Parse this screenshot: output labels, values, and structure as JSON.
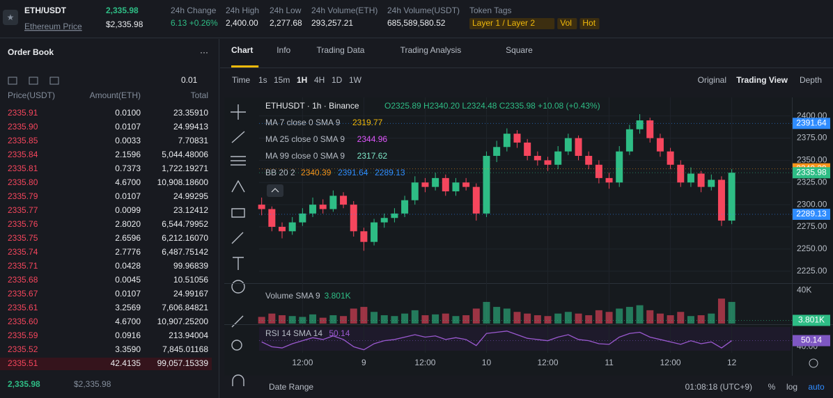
{
  "header": {
    "symbol": "ETH/USDT",
    "name": "Ethereum Price",
    "price": "2,335.98",
    "price_usd": "$2,335.98",
    "stats": [
      {
        "label": "24h Change",
        "value": "6.13 +0.26%"
      },
      {
        "label": "24h High",
        "value": "2,400.00"
      },
      {
        "label": "24h Low",
        "value": "2,277.68"
      },
      {
        "label": "24h Volume(ETH)",
        "value": "293,257.21"
      },
      {
        "label": "24h Volume(USDT)",
        "value": "685,589,580.52"
      }
    ],
    "tags_label": "Token Tags",
    "tags": [
      "Layer 1 / Layer 2",
      "Vol",
      "Hot"
    ]
  },
  "order_book": {
    "title": "Order Book",
    "step": "0.01",
    "columns": [
      "Price(USDT)",
      "Amount(ETH)",
      "Total"
    ],
    "rows": [
      [
        "2335.91",
        "0.0100",
        "23.35910"
      ],
      [
        "2335.90",
        "0.0107",
        "24.99413"
      ],
      [
        "2335.85",
        "0.0033",
        "7.70831"
      ],
      [
        "2335.84",
        "2.1596",
        "5,044.48006"
      ],
      [
        "2335.81",
        "0.7373",
        "1,722.19271"
      ],
      [
        "2335.80",
        "4.6700",
        "10,908.18600"
      ],
      [
        "2335.79",
        "0.0107",
        "24.99295"
      ],
      [
        "2335.77",
        "0.0099",
        "23.12412"
      ],
      [
        "2335.76",
        "2.8020",
        "6,544.79952"
      ],
      [
        "2335.75",
        "2.6596",
        "6,212.16070"
      ],
      [
        "2335.74",
        "2.7776",
        "6,487.75142"
      ],
      [
        "2335.71",
        "0.0428",
        "99.96839"
      ],
      [
        "2335.68",
        "0.0045",
        "10.51056"
      ],
      [
        "2335.67",
        "0.0107",
        "24.99167"
      ],
      [
        "2335.61",
        "3.2569",
        "7,606.84821"
      ],
      [
        "2335.60",
        "4.6700",
        "10,907.25200"
      ],
      [
        "2335.59",
        "0.0916",
        "213.94004"
      ],
      [
        "2335.52",
        "3.3590",
        "7,845.01168"
      ],
      [
        "2335.51",
        "42.4135",
        "99,057.15339"
      ]
    ],
    "last": "2,335.98",
    "last_usd": "$2,335.98"
  },
  "tabs": [
    "Chart",
    "Info",
    "Trading Data",
    "Trading Analysis",
    "Square"
  ],
  "toolbar": {
    "time": "Time",
    "intervals": [
      "1s",
      "15m",
      "1H",
      "4H",
      "1D",
      "1W"
    ],
    "views": [
      "Original",
      "Trading View",
      "Depth"
    ]
  },
  "legend": {
    "symbol": "ETHUSDT · 1h · Binance",
    "ohlc": "O2325.89 H2340.20 L2324.48 C2335.98 +10.08 (+0.43%)",
    "lines": [
      {
        "name": "MA 7 close 0 SMA 9",
        "value": "2319.77",
        "color": "#f0b90b"
      },
      {
        "name": "MA 25 close 0 SMA 9",
        "value": "2344.96",
        "color": "#e056fd"
      },
      {
        "name": "MA 99 close 0 SMA 9",
        "value": "2317.62",
        "color": "#7ee8c8"
      }
    ],
    "bb": {
      "name": "BB 20 2",
      "values": [
        "2340.39",
        "2391.64",
        "2289.13"
      ],
      "colors": [
        "#f7931a",
        "#2f8cff",
        "#2f8cff"
      ]
    },
    "volume": {
      "name": "Volume SMA 9",
      "value": "3.801K"
    },
    "rsi": {
      "name": "RSI 14 SMA 14",
      "value": "50.14"
    }
  },
  "chart_data": {
    "type": "candlestick",
    "x": [
      0,
      2,
      4,
      6,
      8,
      10,
      12,
      14,
      16,
      18,
      20,
      22,
      24,
      26,
      28,
      30,
      32,
      34,
      36,
      38,
      40,
      42,
      44,
      46,
      48,
      50,
      52,
      54,
      56,
      58,
      60,
      62,
      64,
      66,
      68,
      70,
      72,
      74,
      76,
      78,
      80,
      82,
      84,
      86,
      88,
      90,
      92
    ],
    "ohlc": [
      [
        2300,
        2308,
        2288,
        2295
      ],
      [
        2295,
        2298,
        2270,
        2275
      ],
      [
        2275,
        2280,
        2262,
        2270
      ],
      [
        2270,
        2286,
        2266,
        2280
      ],
      [
        2280,
        2296,
        2276,
        2290
      ],
      [
        2290,
        2308,
        2286,
        2300
      ],
      [
        2300,
        2306,
        2290,
        2295
      ],
      [
        2295,
        2316,
        2292,
        2310
      ],
      [
        2310,
        2314,
        2296,
        2300
      ],
      [
        2300,
        2304,
        2264,
        2270
      ],
      [
        2270,
        2274,
        2248,
        2258
      ],
      [
        2258,
        2284,
        2254,
        2280
      ],
      [
        2280,
        2290,
        2274,
        2285
      ],
      [
        2285,
        2296,
        2280,
        2290
      ],
      [
        2290,
        2310,
        2286,
        2305
      ],
      [
        2305,
        2332,
        2300,
        2325
      ],
      [
        2325,
        2330,
        2314,
        2320
      ],
      [
        2320,
        2336,
        2316,
        2330
      ],
      [
        2330,
        2334,
        2310,
        2315
      ],
      [
        2315,
        2330,
        2310,
        2325
      ],
      [
        2325,
        2330,
        2316,
        2320
      ],
      [
        2320,
        2324,
        2282,
        2290
      ],
      [
        2290,
        2360,
        2286,
        2355
      ],
      [
        2355,
        2372,
        2348,
        2365
      ],
      [
        2365,
        2386,
        2360,
        2380
      ],
      [
        2380,
        2384,
        2364,
        2370
      ],
      [
        2370,
        2374,
        2350,
        2355
      ],
      [
        2355,
        2360,
        2344,
        2350
      ],
      [
        2350,
        2354,
        2338,
        2345
      ],
      [
        2345,
        2366,
        2340,
        2360
      ],
      [
        2360,
        2380,
        2356,
        2375
      ],
      [
        2375,
        2378,
        2350,
        2355
      ],
      [
        2355,
        2360,
        2340,
        2345
      ],
      [
        2345,
        2350,
        2324,
        2330
      ],
      [
        2330,
        2336,
        2318,
        2325
      ],
      [
        2325,
        2366,
        2320,
        2360
      ],
      [
        2360,
        2390,
        2356,
        2385
      ],
      [
        2385,
        2402,
        2380,
        2395
      ],
      [
        2395,
        2398,
        2370,
        2375
      ],
      [
        2375,
        2380,
        2354,
        2360
      ],
      [
        2360,
        2364,
        2340,
        2345
      ],
      [
        2345,
        2350,
        2320,
        2325
      ],
      [
        2325,
        2342,
        2320,
        2335
      ],
      [
        2335,
        2338,
        2314,
        2320
      ],
      [
        2320,
        2334,
        2316,
        2328
      ],
      [
        2328,
        2332,
        2276,
        2282
      ],
      [
        2282,
        2340,
        2278,
        2336
      ]
    ],
    "volume": [
      8,
      12,
      10,
      9,
      8,
      11,
      7,
      10,
      9,
      18,
      20,
      14,
      10,
      9,
      12,
      16,
      10,
      11,
      12,
      9,
      10,
      18,
      26,
      20,
      18,
      14,
      12,
      10,
      9,
      12,
      14,
      12,
      10,
      16,
      14,
      18,
      20,
      22,
      16,
      12,
      10,
      14,
      9,
      10,
      12,
      30,
      26
    ],
    "rsi": [
      48,
      40,
      38,
      45,
      50,
      55,
      52,
      58,
      52,
      40,
      35,
      45,
      50,
      52,
      56,
      60,
      56,
      58,
      52,
      55,
      52,
      42,
      62,
      64,
      66,
      60,
      54,
      52,
      50,
      56,
      60,
      52,
      50,
      45,
      44,
      56,
      62,
      64,
      56,
      52,
      48,
      44,
      50,
      45,
      48,
      38,
      50.14
    ],
    "xlim": [
      -0.5,
      103.5
    ],
    "xticks": [
      {
        "value": 8,
        "label": "12:00"
      },
      {
        "value": 20,
        "label": "9"
      },
      {
        "value": 32,
        "label": "12:00"
      },
      {
        "value": 44,
        "label": "10"
      },
      {
        "value": 56,
        "label": "12:00"
      },
      {
        "value": 68,
        "label": "11"
      },
      {
        "value": 80,
        "label": "12:00"
      },
      {
        "value": 92,
        "label": "12"
      }
    ],
    "ylim": [
      2213,
      2417
    ],
    "yticks": [
      {
        "value": 2400,
        "label": "2400.00"
      },
      {
        "value": 2375,
        "label": "2375.00"
      },
      {
        "value": 2350,
        "label": "2350.00"
      },
      {
        "value": 2325,
        "label": "2325.00"
      },
      {
        "value": 2300,
        "label": "2300.00"
      },
      {
        "value": 2275,
        "label": "2275.00"
      },
      {
        "value": 2250,
        "label": "2250.00"
      },
      {
        "value": 2225,
        "label": "2225.00"
      }
    ],
    "price_tags": [
      {
        "value": 2391.64,
        "label": "2391.64",
        "color": "#2f8cff"
      },
      {
        "value": 2340.39,
        "label": "2340.39",
        "color": "#f7931a"
      },
      {
        "value": 2335.98,
        "label": "2335.98",
        "color": "#2ebd85"
      },
      {
        "value": 2289.13,
        "label": "2289.13",
        "color": "#2f8cff"
      }
    ],
    "vlim": [
      0,
      46
    ],
    "vticks": [
      {
        "value": 40,
        "label": "40K"
      }
    ],
    "vtag": {
      "value": 3.801,
      "label": "3.801K"
    },
    "rlim": [
      30,
      75
    ],
    "rticks": [
      {
        "value": 40,
        "label": "40.00"
      }
    ],
    "rtag": {
      "value": 50.14,
      "label": "50.14"
    },
    "up_color": "#2ebd85",
    "down_color": "#f6465d",
    "grid": true
  },
  "footer": {
    "date_range": "Date Range",
    "clock": "01:08:18 (UTC+9)",
    "options": [
      "%",
      "log",
      "auto"
    ]
  }
}
